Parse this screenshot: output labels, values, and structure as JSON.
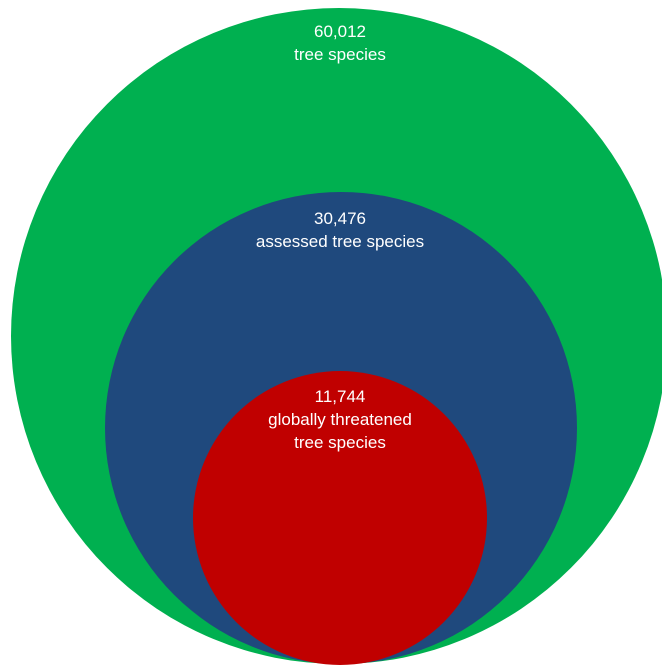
{
  "colors": {
    "outer": "#00b050",
    "middle": "#1f497d",
    "inner": "#c00000",
    "text": "#ffffff"
  },
  "circles": {
    "outer": {
      "count": "60,012",
      "label": "tree species"
    },
    "middle": {
      "count": "30,476",
      "label": "assessed tree species"
    },
    "inner": {
      "count": "11,744",
      "label_line1": "globally threatened",
      "label_line2": "tree species"
    }
  }
}
